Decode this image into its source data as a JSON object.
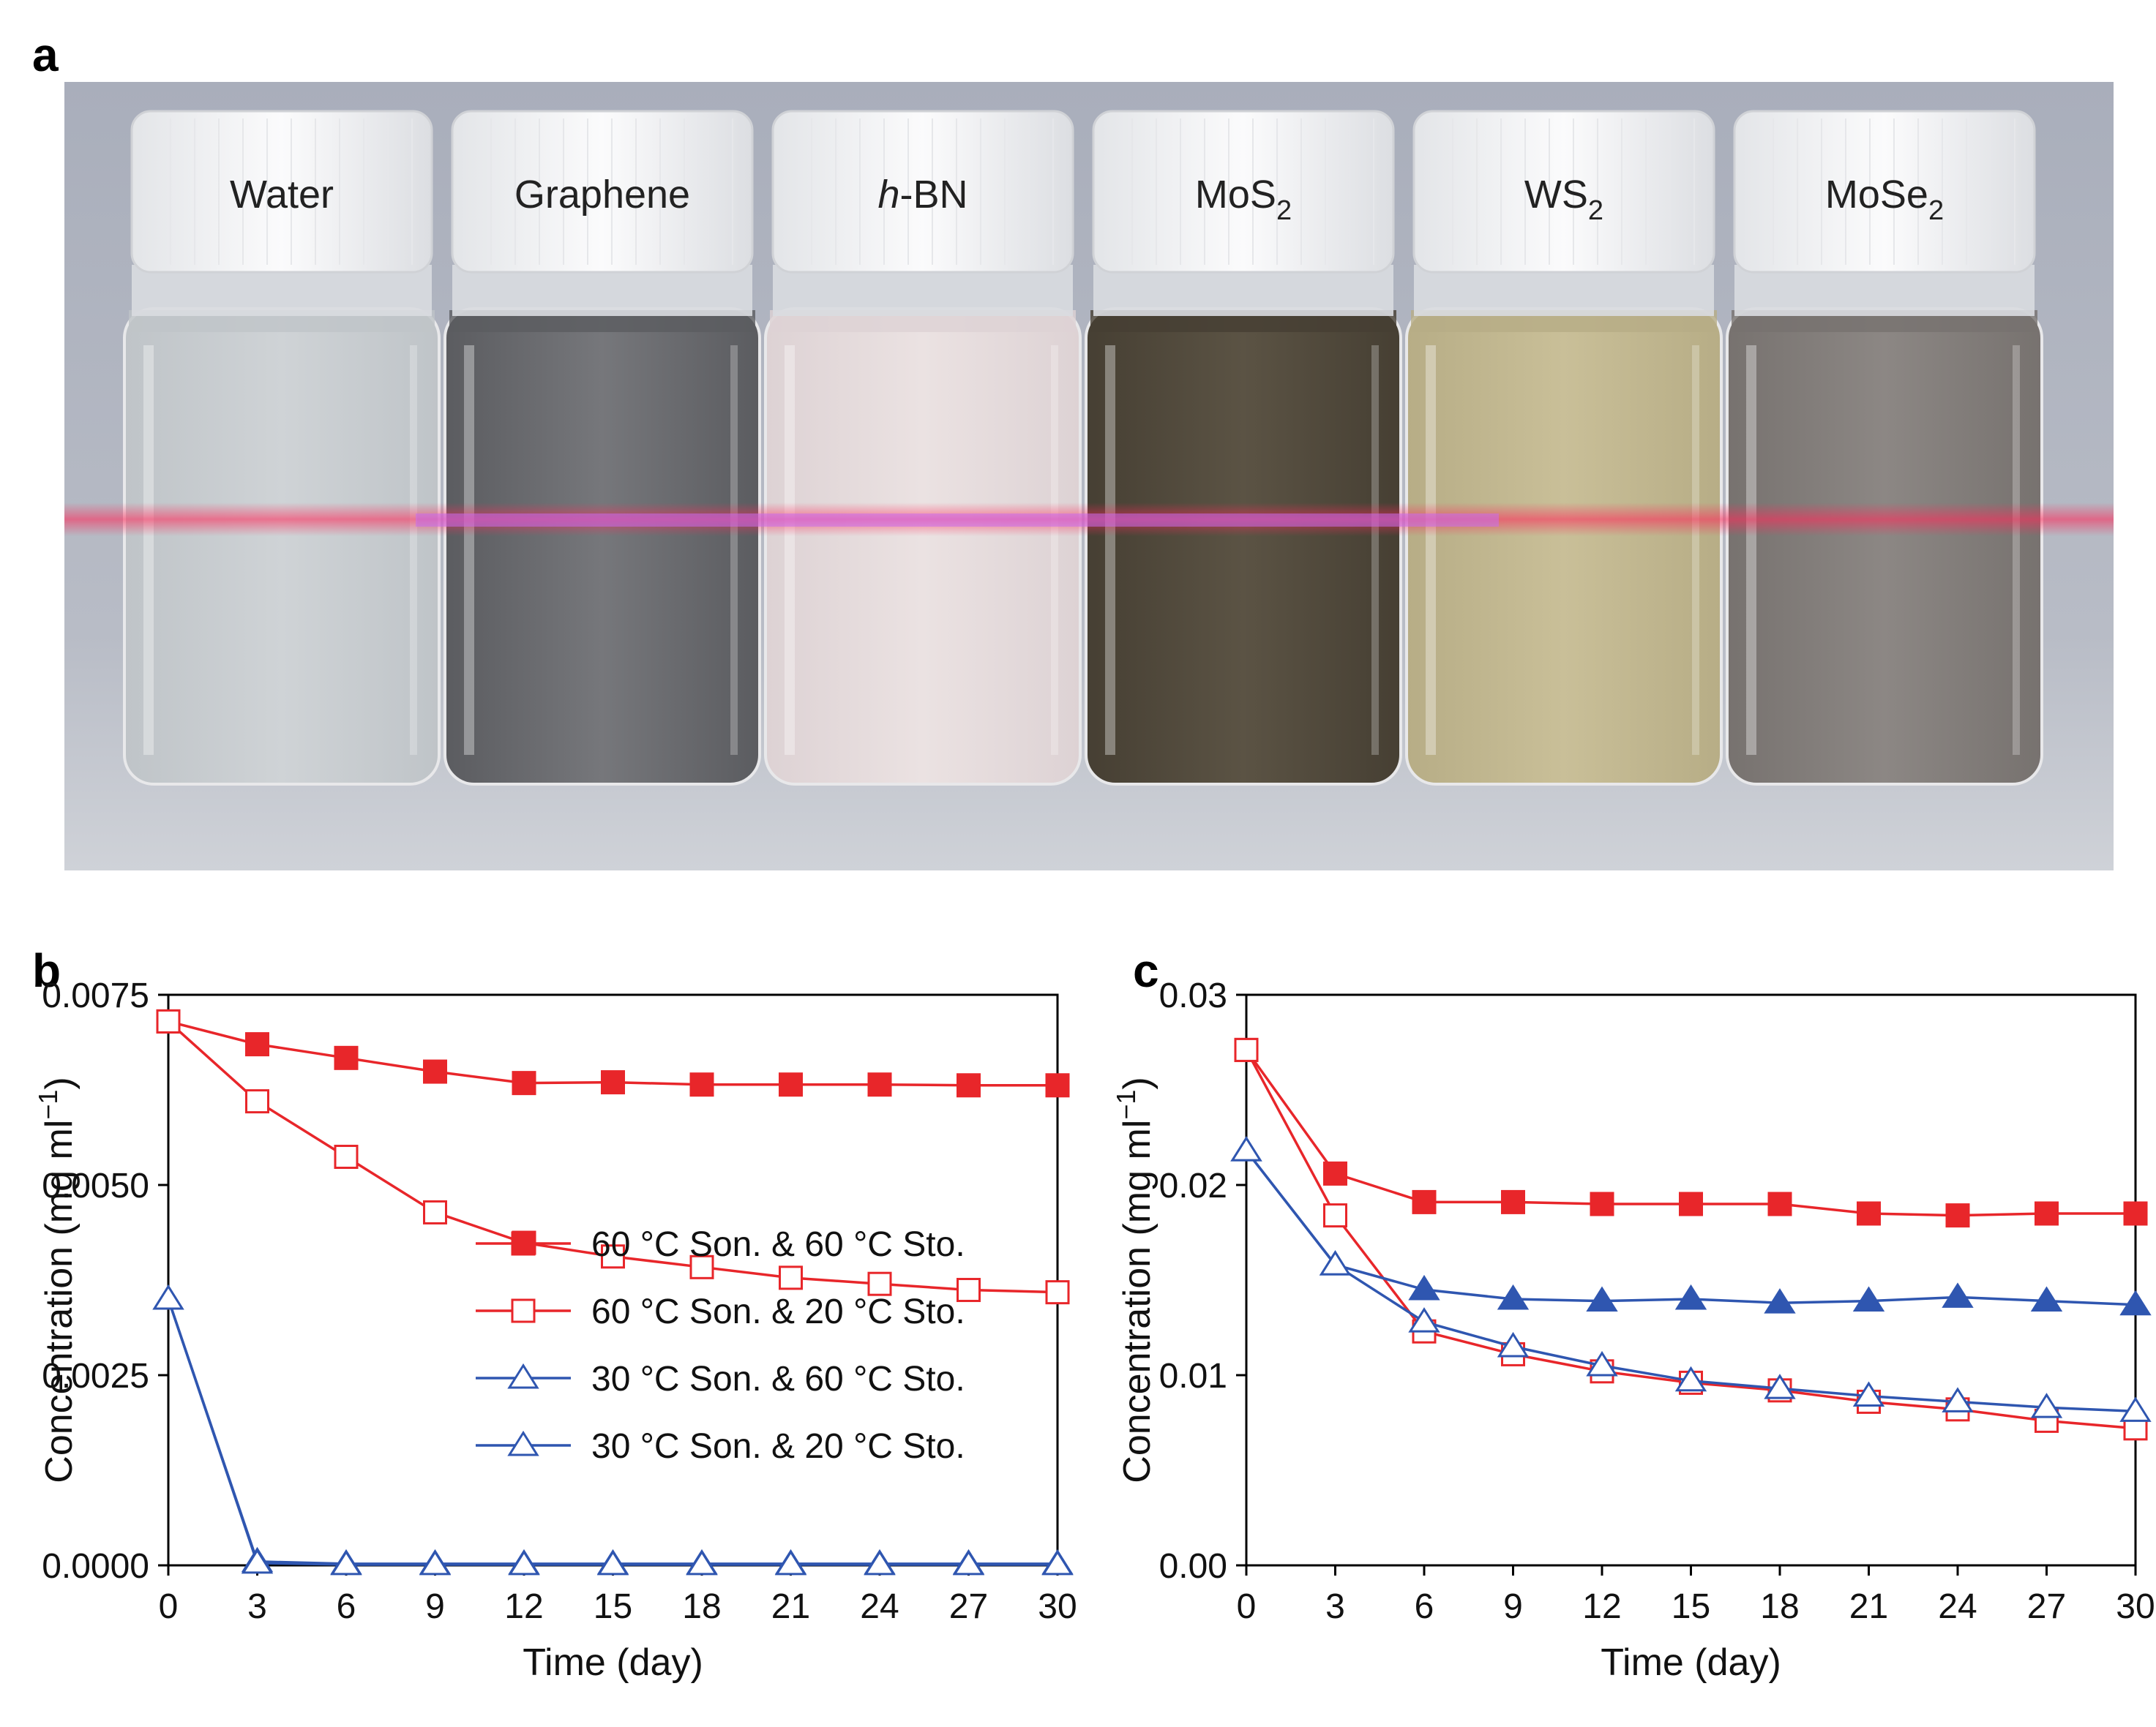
{
  "panels": {
    "a": "a",
    "b": "b",
    "c": "c"
  },
  "photo": {
    "vials": [
      {
        "label": "Water",
        "italic_prefix": "",
        "base": "Water",
        "sub": "",
        "liquid": "#cfd3d6",
        "liquid_dark": "#bfc4c8"
      },
      {
        "label": "Graphene",
        "italic_prefix": "",
        "base": "Graphene",
        "sub": "",
        "liquid": "#76777b",
        "liquid_dark": "#5b5c60"
      },
      {
        "label": "h-BN",
        "italic_prefix": "h",
        "base": "-BN",
        "sub": "",
        "liquid": "#ebe2e2",
        "liquid_dark": "#ddd2d4"
      },
      {
        "label": "MoS2",
        "italic_prefix": "",
        "base": "MoS",
        "sub": "2",
        "liquid": "#5b5344",
        "liquid_dark": "#463f33"
      },
      {
        "label": "WS2",
        "italic_prefix": "",
        "base": "WS",
        "sub": "2",
        "liquid": "#c9bf98",
        "liquid_dark": "#b7ad86"
      },
      {
        "label": "MoSe2",
        "italic_prefix": "",
        "base": "MoSe",
        "sub": "2",
        "liquid": "#8c8784",
        "liquid_dark": "#77726f"
      }
    ],
    "laser_color": "#ff2a5a",
    "background": "#b8bcc6"
  },
  "chart_data": [
    {
      "type": "line",
      "panel": "b",
      "xlabel": "Time (day)",
      "ylabel": "Concentration (mg ml−1)",
      "ylabel_base": "Concentration (mg ml",
      "ylabel_sup": "−1",
      "ylabel_close": ")",
      "xlim": [
        0,
        30
      ],
      "ylim": [
        0,
        0.0075
      ],
      "xticks": [
        "0",
        "3",
        "6",
        "9",
        "12",
        "15",
        "18",
        "21",
        "24",
        "27",
        "30"
      ],
      "yticks": [
        {
          "value": 0.0,
          "label": "0.0000"
        },
        {
          "value": 0.0025,
          "label": "0.0025"
        },
        {
          "value": 0.005,
          "label": "0.0050"
        },
        {
          "value": 0.0075,
          "label": "0.0075"
        }
      ],
      "grid": false,
      "legend_position": "bottom-right",
      "series": [
        {
          "name": "60 °C Son. & 60 °C Sto.",
          "color": "#e8262a",
          "marker": "square",
          "filled": true,
          "x": [
            0,
            3,
            6,
            9,
            12,
            15,
            18,
            21,
            24,
            27,
            30
          ],
          "y": [
            0.00715,
            0.00685,
            0.00667,
            0.00649,
            0.00634,
            0.00635,
            0.00632,
            0.00632,
            0.00632,
            0.00631,
            0.00631
          ]
        },
        {
          "name": "60 °C Son. & 20 °C Sto.",
          "color": "#e8262a",
          "marker": "square",
          "filled": false,
          "x": [
            0,
            3,
            6,
            9,
            12,
            15,
            18,
            21,
            24,
            27,
            30
          ],
          "y": [
            0.00715,
            0.0061,
            0.00537,
            0.00464,
            0.00424,
            0.00406,
            0.00392,
            0.00378,
            0.0037,
            0.00362,
            0.00359
          ]
        },
        {
          "name": "30 °C Son. & 60 °C Sto.",
          "color": "#2f56b0",
          "marker": "triangle",
          "filled": false,
          "x": [
            0,
            3,
            6,
            9,
            12,
            15,
            18,
            21,
            24,
            27,
            30
          ],
          "y": [
            0.0035,
            5e-05,
            2e-05,
            2e-05,
            2e-05,
            2e-05,
            2e-05,
            2e-05,
            2e-05,
            2e-05,
            2e-05
          ]
        },
        {
          "name": "30 °C Son. & 20 °C Sto.",
          "color": "#2f56b0",
          "marker": "triangle",
          "filled": false,
          "x": [
            0,
            3,
            6,
            9,
            12,
            15,
            18,
            21,
            24,
            27,
            30
          ],
          "y": [
            0.0035,
            3e-05,
            1e-05,
            1e-05,
            1e-05,
            1e-05,
            1e-05,
            1e-05,
            1e-05,
            1e-05,
            1e-05
          ]
        }
      ]
    },
    {
      "type": "line",
      "panel": "c",
      "xlabel": "Time (day)",
      "ylabel": "Concentration (mg ml−1)",
      "ylabel_base": "Concentration (mg ml",
      "ylabel_sup": "−1",
      "ylabel_close": ")",
      "xlim": [
        0,
        30
      ],
      "ylim": [
        0,
        0.03
      ],
      "xticks": [
        "0",
        "3",
        "6",
        "9",
        "12",
        "15",
        "18",
        "21",
        "24",
        "27",
        "30"
      ],
      "yticks": [
        {
          "value": 0.0,
          "label": "0.00"
        },
        {
          "value": 0.01,
          "label": "0.01"
        },
        {
          "value": 0.02,
          "label": "0.02"
        },
        {
          "value": 0.03,
          "label": "0.03"
        }
      ],
      "grid": false,
      "series": [
        {
          "color": "#e8262a",
          "marker": "square",
          "filled": true,
          "x": [
            0,
            3,
            6,
            9,
            12,
            15,
            18,
            21,
            24,
            27,
            30
          ],
          "y": [
            0.0271,
            0.0206,
            0.0191,
            0.0191,
            0.019,
            0.019,
            0.019,
            0.0185,
            0.0184,
            0.0185,
            0.0185
          ]
        },
        {
          "color": "#e8262a",
          "marker": "square",
          "filled": false,
          "x": [
            0,
            3,
            6,
            9,
            12,
            15,
            18,
            21,
            24,
            27,
            30
          ],
          "y": [
            0.0271,
            0.0184,
            0.0123,
            0.0111,
            0.0102,
            0.0096,
            0.0092,
            0.0086,
            0.0082,
            0.0076,
            0.0072
          ]
        },
        {
          "color": "#2f56b0",
          "marker": "triangle",
          "filled": true,
          "x": [
            0,
            3,
            6,
            9,
            12,
            15,
            18,
            21,
            24,
            27,
            30
          ],
          "y": [
            0.0218,
            0.0158,
            0.0145,
            0.014,
            0.0139,
            0.014,
            0.0138,
            0.0139,
            0.0141,
            0.0139,
            0.0137
          ]
        },
        {
          "color": "#2f56b0",
          "marker": "triangle",
          "filled": false,
          "x": [
            0,
            3,
            6,
            9,
            12,
            15,
            18,
            21,
            24,
            27,
            30
          ],
          "y": [
            0.0218,
            0.0158,
            0.0128,
            0.0115,
            0.0105,
            0.0097,
            0.0093,
            0.0089,
            0.0086,
            0.0083,
            0.0081
          ]
        }
      ]
    }
  ]
}
